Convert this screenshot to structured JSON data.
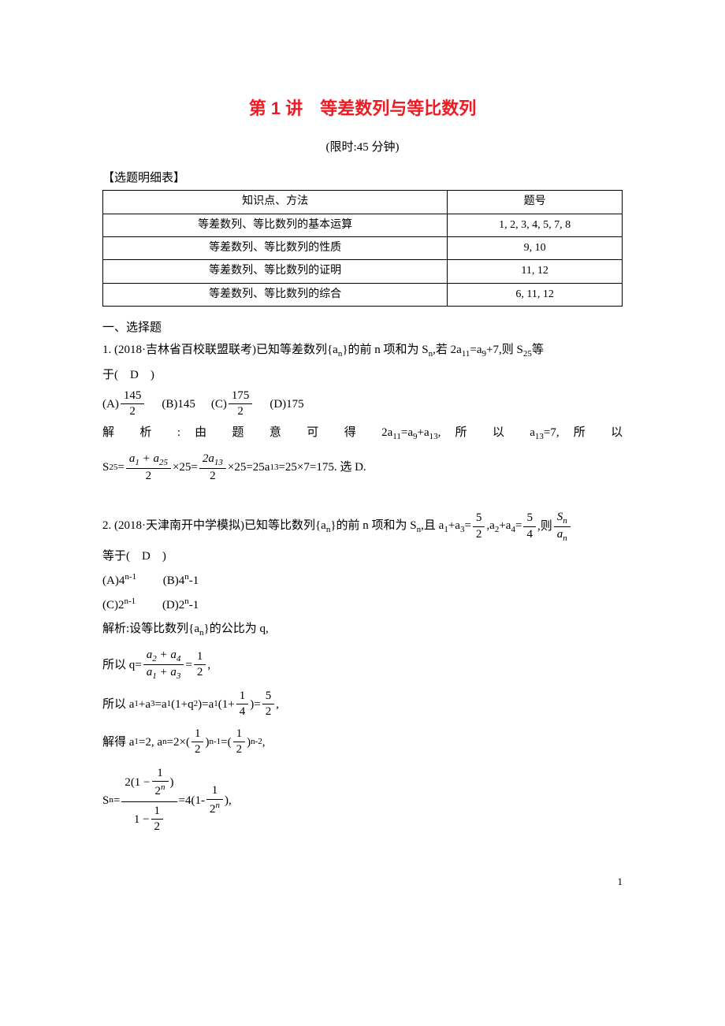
{
  "title": "第 1 讲　等差数列与等比数列",
  "subtitle": "(限时:45 分钟)",
  "tableLabel": "【选题明细表】",
  "table": {
    "headers": [
      "知识点、方法",
      "题号"
    ],
    "rows": [
      [
        "等差数列、等比数列的基本运算",
        "1, 2, 3, 4, 5, 7, 8"
      ],
      [
        "等差数列、等比数列的性质",
        "9, 10"
      ],
      [
        "等差数列、等比数列的证明",
        "11, 12"
      ],
      [
        "等差数列、等比数列的综合",
        "6, 11, 12"
      ]
    ]
  },
  "sectionA": "一、选择题",
  "problem1": {
    "text1": "1. (2018·吉林省百校联盟联考)已知等差数列{a",
    "text2": "}的前 n 项和为 S",
    "text3": ",若 2a",
    "text4": "=a",
    "text5": "+7,则 S",
    "text6": "等",
    "text7": "于(　D　)",
    "optA": "(A)",
    "optB": "(B)145",
    "optC": "(C)",
    "optD": "(D)175",
    "fracA_num": "145",
    "fracA_den": "2",
    "fracC_num": "175",
    "fracC_den": "2",
    "sol1a": "解",
    "sol1b": "析",
    "sol1c": ":",
    "sol1d": "由",
    "sol1e": "题",
    "sol1f": "意",
    "sol1g": "可",
    "sol1h": "得",
    "sol1i": "2a",
    "sol1j": "=a",
    "sol1k": "+a",
    "sol1l": ",",
    "sol1m": "所",
    "sol1n": "以",
    "sol1o": "a",
    "sol1p": "=7,",
    "sol1q": "所",
    "sol1r": "以",
    "sol2a": "S",
    "sol2b": "=",
    "sol2_frac1_num": "a₁ + a₂₅",
    "sol2_frac1_den": "2",
    "sol2c": "×25=",
    "sol2_frac2_num": "2a₁₃",
    "sol2_frac2_den": "2",
    "sol2d": "×25=25a",
    "sol2e": "=25×7=175. 选 D."
  },
  "problem2": {
    "text1": "2. (2018·天津南开中学模拟)已知等比数列{a",
    "text2": "}的前 n 项和为 S",
    "text3": ",且 a",
    "text4": "+a",
    "text5": "=",
    "text6": ",a",
    "text7": "+a",
    "text8": "=",
    "text9": ",则",
    "frac1_num": "5",
    "frac1_den": "2",
    "frac2_num": "5",
    "frac2_den": "4",
    "frac3_num": "Sₙ",
    "frac3_den": "aₙ",
    "text10": "等于(　D　)",
    "optA": "(A)4",
    "optA_sup": "n-1",
    "optB": "(B)4",
    "optB_sup": "n",
    "optB_tail": "-1",
    "optC": "(C)2",
    "optC_sup": "n-1",
    "optD": "(D)2",
    "optD_sup": "n",
    "optD_tail": "-1",
    "sol1": "解析:设等比数列{a",
    "sol1b": "}的公比为 q,",
    "sol2a": "所以 q=",
    "sol2_frac_num": "a₂ + a₄",
    "sol2_frac_den": "a₁ + a₃",
    "sol2b": "=",
    "sol2_frac2_num": "1",
    "sol2_frac2_den": "2",
    "sol2c": ",",
    "sol3a": "所以 a",
    "sol3b": "+a",
    "sol3c": "=a",
    "sol3d": "(1+q",
    "sol3e": ")=a",
    "sol3f": "(1+",
    "sol3_frac1_num": "1",
    "sol3_frac1_den": "4",
    "sol3g": ")=",
    "sol3_frac2_num": "5",
    "sol3_frac2_den": "2",
    "sol3h": ",",
    "sol4a": "解得 a",
    "sol4b": "=2, a",
    "sol4c": "=2×(",
    "sol4_frac1_num": "1",
    "sol4_frac1_den": "2",
    "sol4d": ")",
    "sol4e": "=(",
    "sol4_frac2_num": "1",
    "sol4_frac2_den": "2",
    "sol4f": ")",
    "sol4g": ",",
    "sol5a": "S",
    "sol5b": "=",
    "sol5c": "=4(1-",
    "sol5_frac3_num": "1",
    "sol5_frac3_den": "2ⁿ",
    "sol5d": "),"
  },
  "pageNumber": "1"
}
